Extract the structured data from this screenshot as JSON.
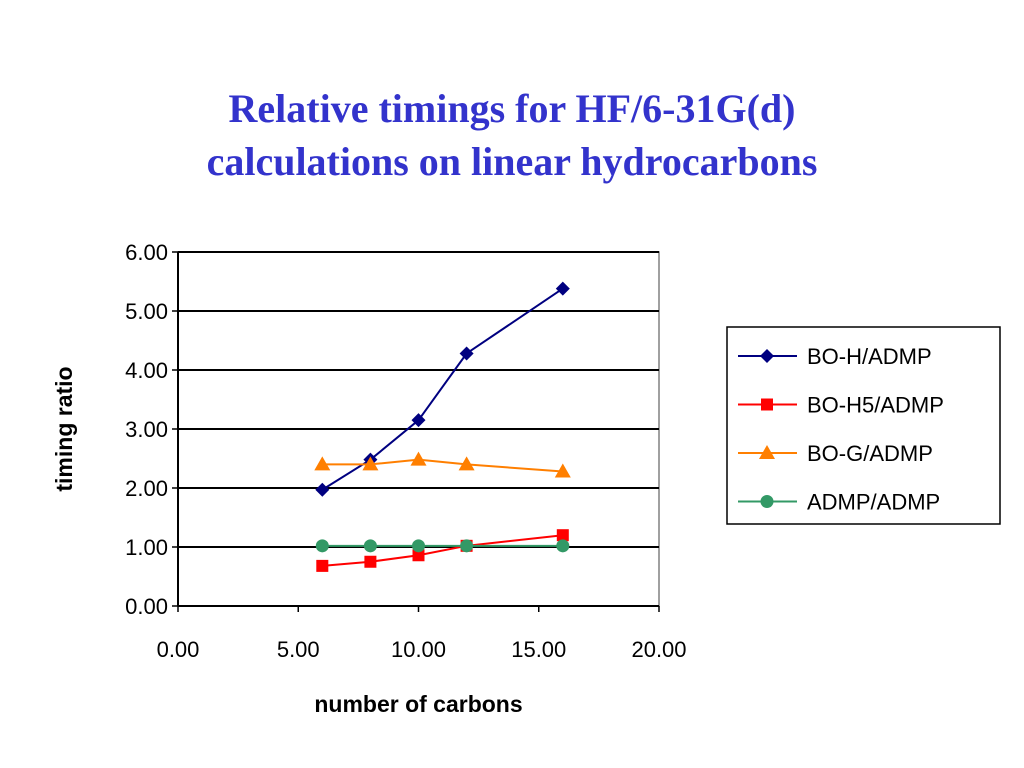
{
  "title_lines": [
    "Relative timings for HF/6-31G(d)",
    "calculations on linear hydrocarbons"
  ],
  "chart_data": {
    "type": "line",
    "title": "Relative timings for HF/6-31G(d) calculations on linear hydrocarbons",
    "xlabel": "number of carbons",
    "ylabel": "timing ratio",
    "xlim": [
      0,
      20
    ],
    "ylim": [
      0,
      6
    ],
    "x_ticks": [
      "0.00",
      "5.00",
      "10.00",
      "15.00",
      "20.00"
    ],
    "y_ticks": [
      "0.00",
      "1.00",
      "2.00",
      "3.00",
      "4.00",
      "5.00",
      "6.00"
    ],
    "grid": "horizontal",
    "legend_position": "right",
    "x": [
      6,
      8,
      10,
      12,
      16
    ],
    "series": [
      {
        "name": "BO-H/ADMP",
        "marker": "diamond",
        "color": "#000080",
        "values": [
          1.97,
          2.48,
          3.15,
          4.28,
          5.38
        ]
      },
      {
        "name": "BO-H5/ADMP",
        "marker": "square",
        "color": "#ff0000",
        "values": [
          0.68,
          0.75,
          0.86,
          1.02,
          1.2
        ]
      },
      {
        "name": "BO-G/ADMP",
        "marker": "triangle",
        "color": "#ff7f00",
        "values": [
          2.4,
          2.4,
          2.48,
          2.4,
          2.28
        ]
      },
      {
        "name": "ADMP/ADMP",
        "marker": "circle",
        "color": "#339966",
        "values": [
          1.02,
          1.02,
          1.02,
          1.02,
          1.02
        ]
      }
    ]
  }
}
